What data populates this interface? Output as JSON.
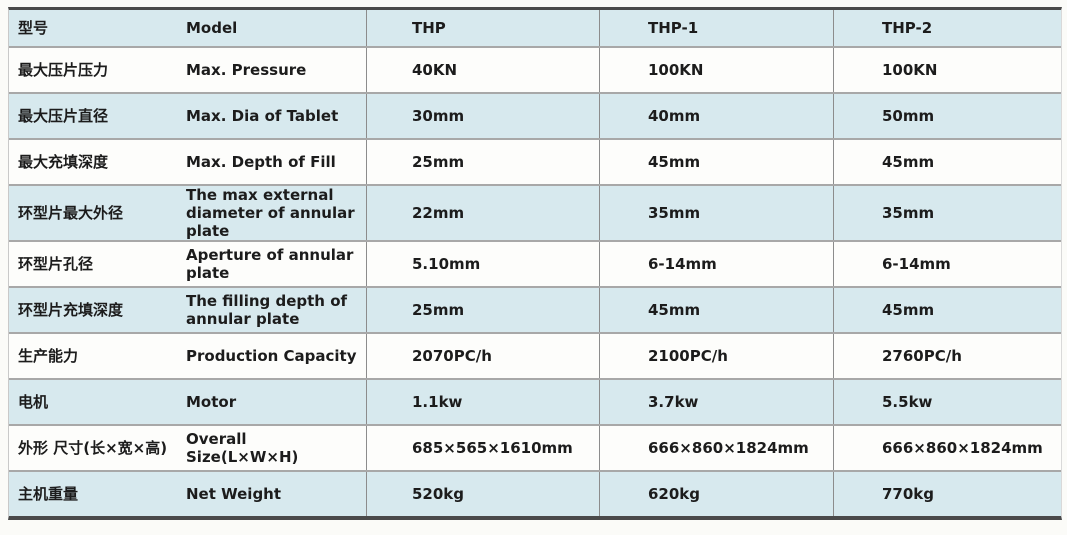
{
  "table": {
    "rows": [
      {
        "cn": "型号",
        "en": "Model",
        "thp": "THP",
        "thp1": "THP-1",
        "thp2": "THP-2"
      },
      {
        "cn": "最大压片压力",
        "en": "Max. Pressure",
        "thp": "40KN",
        "thp1": "100KN",
        "thp2": "100KN"
      },
      {
        "cn": "最大压片直径",
        "en": "Max. Dia of Tablet",
        "thp": "30mm",
        "thp1": "40mm",
        "thp2": "50mm"
      },
      {
        "cn": "最大充填深度",
        "en": "Max. Depth of Fill",
        "thp": "25mm",
        "thp1": "45mm",
        "thp2": "45mm"
      },
      {
        "cn": "环型片最大外径",
        "en": "The max external\ndiameter of annular plate",
        "thp": "22mm",
        "thp1": "35mm",
        "thp2": "35mm"
      },
      {
        "cn": "环型片孔径",
        "en": "Aperture of annular\nplate",
        "thp": "5.10mm",
        "thp1": "6-14mm",
        "thp2": "6-14mm"
      },
      {
        "cn": "环型片充填深度",
        "en": "The filling depth of\nannular plate",
        "thp": "25mm",
        "thp1": "45mm",
        "thp2": "45mm"
      },
      {
        "cn": "生产能力",
        "en": "Production Capacity",
        "thp": "2070PC/h",
        "thp1": "2100PC/h",
        "thp2": "2760PC/h"
      },
      {
        "cn": "电机",
        "en": "Motor",
        "thp": "1.1kw",
        "thp1": "3.7kw",
        "thp2": "5.5kw"
      },
      {
        "cn": "外形 尺寸(长×宽×高)",
        "en": "Overall Size(L×W×H)",
        "thp": "685×565×1610mm",
        "thp1": "666×860×1824mm",
        "thp2": "666×860×1824mm"
      },
      {
        "cn": "主机重量",
        "en": "Net Weight",
        "thp": "520kg",
        "thp1": "620kg",
        "thp2": "770kg"
      }
    ],
    "colors": {
      "band": "#d7e9ee",
      "row": "#fdfdfb",
      "border-dark": "#4a4a4a",
      "separator": "#a8a8a8",
      "column-line": "#8c8c8c",
      "text": "#1c1c1c",
      "page-bg": "#fbfbf8"
    }
  }
}
